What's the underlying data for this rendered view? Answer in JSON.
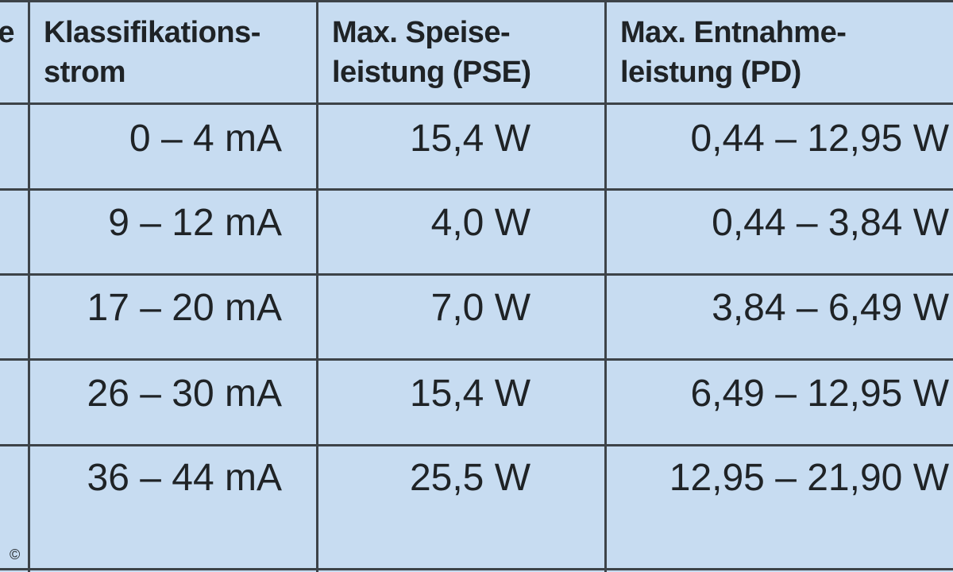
{
  "table": {
    "header": [
      [
        "e"
      ],
      [
        "Klassifikations-",
        "strom"
      ],
      [
        "Max. Speise-",
        "leistung (PSE)"
      ],
      [
        "Max. Entnahme-",
        "leistung (PD)"
      ]
    ],
    "rows": [
      [
        "0 – 4 mA",
        "15,4 W",
        "0,44 – 12,95 W"
      ],
      [
        "9 – 12 mA",
        "4,0 W",
        "0,44 – 3,84 W"
      ],
      [
        "17 – 20 mA",
        "7,0 W",
        "3,84 – 6,49 W"
      ],
      [
        "26 – 30 mA",
        "15,4 W",
        "6,49 – 12,95 W"
      ],
      [
        "36 – 44 mA",
        "25,5 W",
        "12,95 – 21,90 W"
      ]
    ]
  },
  "footer": {
    "copyright": "©"
  }
}
